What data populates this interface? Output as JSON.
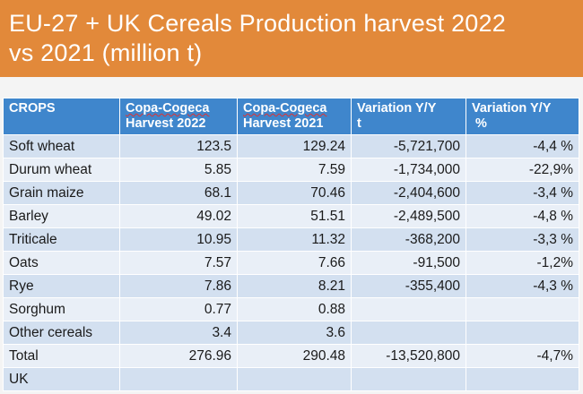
{
  "title": {
    "line1": "EU-27 + UK Cereals Production harvest 2022",
    "line2": "vs 2021  (million t)"
  },
  "table": {
    "headers": {
      "crops": "CROPS",
      "harvest2022_a": "Copa-Cogeca",
      "harvest2022_b": "Harvest 2022",
      "harvest2021_a": "Copa-Cogeca",
      "harvest2021_b": "Harvest 2021",
      "var_t_a": "Variation Y/Y",
      "var_t_b": "t",
      "var_pct_a": "Variation Y/Y",
      "var_pct_b": "%"
    },
    "rows": [
      {
        "crop": "Soft wheat",
        "h2022": "123.5",
        "h2021": "129.24",
        "var_t": "-5,721,700",
        "var_pct": "-4,4 %"
      },
      {
        "crop": "Durum wheat",
        "h2022": "5.85",
        "h2021": "7.59",
        "var_t": "-1,734,000",
        "var_pct": "-22,9%"
      },
      {
        "crop": "Grain maize",
        "h2022": "68.1",
        "h2021": "70.46",
        "var_t": "-2,404,600",
        "var_pct": "-3,4 %"
      },
      {
        "crop": "Barley",
        "h2022": "49.02",
        "h2021": "51.51",
        "var_t": "-2,489,500",
        "var_pct": "-4,8 %"
      },
      {
        "crop": "Triticale",
        "h2022": "10.95",
        "h2021": "11.32",
        "var_t": "-368,200",
        "var_pct": "-3,3 %"
      },
      {
        "crop": "Oats",
        "h2022": "7.57",
        "h2021": "7.66",
        "var_t": "-91,500",
        "var_pct": "-1,2%"
      },
      {
        "crop": "Rye",
        "h2022": "7.86",
        "h2021": "8.21",
        "var_t": "-355,400",
        "var_pct": "-4,3 %"
      },
      {
        "crop": "Sorghum",
        "h2022": "0.77",
        "h2021": "0.88",
        "var_t": "",
        "var_pct": ""
      },
      {
        "crop": "Other cereals",
        "h2022": "3.4",
        "h2021": "3.6",
        "var_t": "",
        "var_pct": ""
      },
      {
        "crop": "Total",
        "h2022": "276.96",
        "h2021": "290.48",
        "var_t": "-13,520,800",
        "var_pct": "-4,7%"
      },
      {
        "crop": "UK",
        "h2022": "",
        "h2021": "",
        "var_t": "",
        "var_pct": ""
      }
    ]
  }
}
